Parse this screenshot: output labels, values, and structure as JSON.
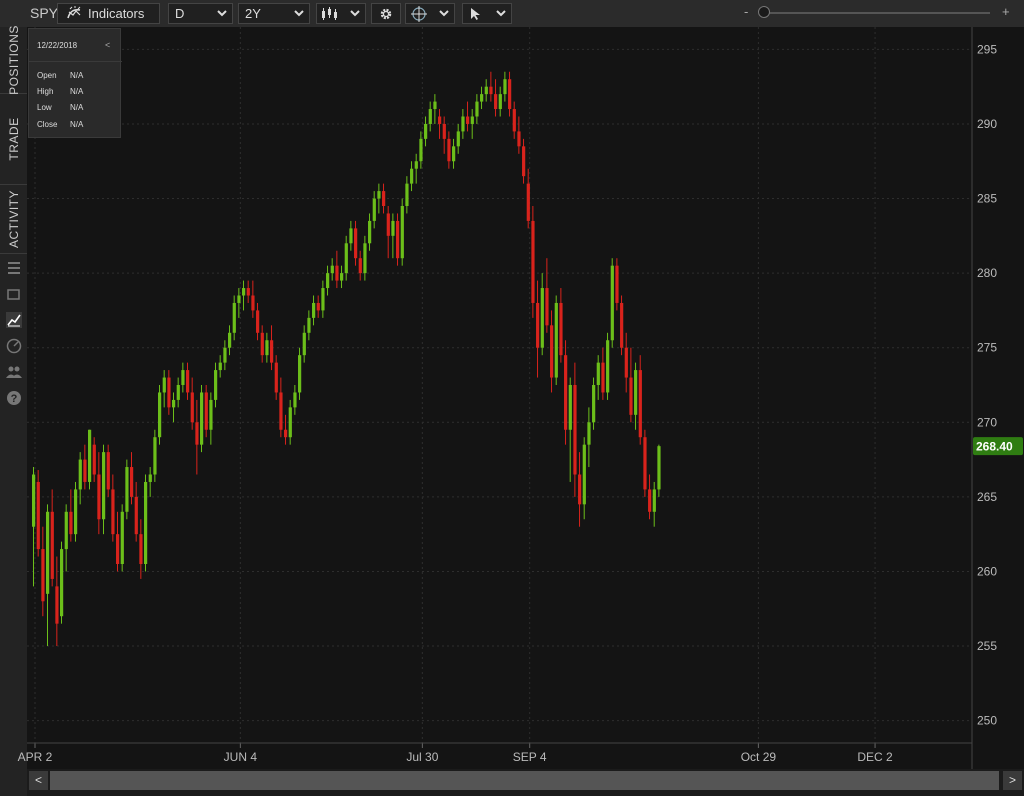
{
  "toolbar": {
    "symbol": "SPY",
    "indicators_label": "Indicators",
    "timeframe": "D",
    "range": "2Y",
    "zoom_minus": "-",
    "zoom_plus": "+"
  },
  "sidebar": {
    "tabs": [
      {
        "label": "POSITIONS"
      },
      {
        "label": "TRADE"
      },
      {
        "label": "ACTIVITY"
      }
    ],
    "icons": [
      "list-icon",
      "window-icon",
      "chart-icon",
      "gauge-icon",
      "people-icon",
      "help-icon"
    ]
  },
  "ohlc_box": {
    "date": "12/22/2018",
    "back_glyph": "<",
    "rows": [
      {
        "label": "Open",
        "value": "N/A"
      },
      {
        "label": "High",
        "value": "N/A"
      },
      {
        "label": "Low",
        "value": "N/A"
      },
      {
        "label": "Close",
        "value": "N/A"
      }
    ]
  },
  "scrollbar": {
    "left_glyph": "<",
    "right_glyph": ">"
  },
  "colors": {
    "up": "#6cbf1a",
    "down": "#d9231c",
    "price_tag": "#2f7d12",
    "background": "#141414"
  },
  "chart_data": {
    "type": "candlestick",
    "x_ticks": [
      "APR 2",
      "JUN 4",
      "Jul 30",
      "SEP 4",
      "Oct 29",
      "DEC 2"
    ],
    "x_tick_index": [
      0,
      44,
      83,
      106,
      155,
      180
    ],
    "y_ticks": [
      250,
      255,
      260,
      265,
      270,
      275,
      280,
      285,
      290,
      295
    ],
    "ylim": [
      248.5,
      296.5
    ],
    "last_price": 268.4,
    "last_price_label": "268.40",
    "grid": true,
    "candles": [
      [
        263.0,
        267.0,
        259.0,
        266.5
      ],
      [
        266.0,
        266.8,
        261.0,
        261.5
      ],
      [
        261.5,
        263.0,
        257.0,
        258.0
      ],
      [
        258.5,
        264.5,
        255.0,
        264.0
      ],
      [
        264.0,
        265.5,
        259.0,
        259.5
      ],
      [
        259.0,
        261.0,
        255.0,
        256.5
      ],
      [
        257.0,
        262.0,
        256.5,
        261.5
      ],
      [
        261.5,
        264.5,
        260.0,
        264.0
      ],
      [
        264.0,
        265.5,
        262.0,
        262.5
      ],
      [
        262.5,
        266.0,
        262.0,
        265.5
      ],
      [
        265.5,
        268.0,
        264.5,
        267.5
      ],
      [
        267.5,
        268.5,
        265.5,
        266.0
      ],
      [
        266.0,
        269.5,
        265.5,
        269.5
      ],
      [
        268.5,
        269.0,
        266.0,
        266.5
      ],
      [
        266.5,
        268.0,
        262.5,
        263.5
      ],
      [
        263.5,
        268.5,
        262.5,
        268.0
      ],
      [
        268.0,
        268.5,
        265.0,
        265.5
      ],
      [
        265.5,
        266.5,
        262.0,
        262.5
      ],
      [
        262.5,
        264.0,
        260.0,
        260.5
      ],
      [
        260.5,
        264.5,
        260.0,
        264.0
      ],
      [
        264.0,
        267.5,
        263.5,
        267.0
      ],
      [
        267.0,
        268.0,
        264.5,
        265.0
      ],
      [
        265.0,
        266.0,
        262.0,
        262.5
      ],
      [
        262.5,
        263.5,
        259.5,
        260.5
      ],
      [
        260.5,
        266.5,
        260.0,
        266.0
      ],
      [
        266.0,
        267.0,
        265.0,
        266.5
      ],
      [
        266.5,
        269.5,
        266.0,
        269.0
      ],
      [
        269.0,
        272.5,
        268.5,
        272.0
      ],
      [
        272.0,
        273.5,
        271.0,
        273.0
      ],
      [
        273.0,
        273.5,
        270.5,
        271.0
      ],
      [
        271.0,
        272.0,
        270.0,
        271.5
      ],
      [
        271.5,
        273.0,
        271.0,
        272.5
      ],
      [
        272.5,
        274.0,
        272.0,
        273.5
      ],
      [
        273.5,
        274.0,
        271.5,
        272.0
      ],
      [
        272.0,
        273.0,
        269.5,
        270.0
      ],
      [
        270.0,
        271.5,
        266.5,
        268.5
      ],
      [
        268.5,
        272.5,
        268.0,
        272.0
      ],
      [
        272.0,
        272.5,
        269.0,
        269.5
      ],
      [
        269.5,
        272.0,
        268.5,
        271.5
      ],
      [
        271.5,
        274.0,
        271.0,
        273.5
      ],
      [
        273.5,
        274.5,
        273.0,
        274.0
      ],
      [
        274.0,
        275.5,
        273.5,
        275.0
      ],
      [
        275.0,
        276.5,
        274.5,
        276.0
      ],
      [
        276.0,
        278.5,
        275.5,
        278.0
      ],
      [
        278.0,
        279.0,
        277.0,
        278.5
      ],
      [
        278.5,
        279.5,
        277.5,
        279.0
      ],
      [
        279.0,
        279.5,
        278.0,
        278.5
      ],
      [
        278.5,
        279.5,
        277.0,
        277.5
      ],
      [
        277.5,
        278.0,
        275.5,
        276.0
      ],
      [
        276.0,
        276.5,
        274.0,
        274.5
      ],
      [
        274.5,
        276.0,
        274.0,
        275.5
      ],
      [
        275.5,
        276.5,
        273.5,
        274.0
      ],
      [
        274.0,
        274.5,
        271.5,
        272.0
      ],
      [
        272.0,
        273.0,
        269.0,
        269.5
      ],
      [
        269.5,
        270.5,
        268.5,
        269.0
      ],
      [
        269.0,
        271.5,
        268.5,
        271.0
      ],
      [
        271.0,
        272.5,
        270.5,
        272.0
      ],
      [
        272.0,
        275.0,
        271.5,
        274.5
      ],
      [
        274.5,
        276.5,
        274.0,
        276.0
      ],
      [
        276.0,
        277.5,
        275.5,
        277.0
      ],
      [
        277.0,
        278.5,
        276.5,
        278.0
      ],
      [
        278.0,
        278.5,
        277.0,
        277.5
      ],
      [
        277.5,
        279.5,
        277.0,
        279.0
      ],
      [
        279.0,
        280.5,
        278.5,
        280.0
      ],
      [
        280.0,
        281.0,
        279.5,
        280.5
      ],
      [
        280.5,
        281.5,
        279.0,
        279.5
      ],
      [
        279.5,
        280.5,
        279.0,
        280.0
      ],
      [
        280.0,
        282.5,
        279.5,
        282.0
      ],
      [
        282.0,
        283.5,
        281.5,
        283.0
      ],
      [
        283.0,
        283.5,
        280.5,
        281.0
      ],
      [
        281.0,
        281.5,
        279.5,
        280.0
      ],
      [
        280.0,
        282.5,
        279.5,
        282.0
      ],
      [
        282.0,
        284.0,
        281.5,
        283.5
      ],
      [
        283.5,
        285.5,
        283.0,
        285.0
      ],
      [
        285.0,
        286.0,
        284.0,
        285.5
      ],
      [
        285.5,
        286.0,
        284.0,
        284.5
      ],
      [
        284.0,
        284.5,
        281.0,
        282.5
      ],
      [
        282.5,
        284.0,
        281.0,
        283.5
      ],
      [
        283.5,
        284.0,
        280.5,
        281.0
      ],
      [
        281.0,
        285.0,
        280.5,
        284.5
      ],
      [
        284.5,
        286.5,
        284.0,
        286.0
      ],
      [
        286.0,
        287.5,
        285.5,
        287.0
      ],
      [
        287.0,
        288.0,
        286.0,
        287.5
      ],
      [
        287.5,
        289.5,
        287.0,
        289.0
      ],
      [
        289.0,
        290.5,
        288.5,
        290.0
      ],
      [
        290.0,
        291.5,
        289.5,
        291.0
      ],
      [
        291.0,
        292.0,
        290.0,
        291.5
      ],
      [
        290.5,
        291.0,
        289.0,
        290.0
      ],
      [
        290.0,
        290.5,
        288.0,
        289.0
      ],
      [
        289.0,
        289.5,
        287.0,
        287.5
      ],
      [
        287.5,
        289.0,
        287.0,
        288.5
      ],
      [
        288.5,
        290.0,
        288.0,
        289.5
      ],
      [
        289.5,
        291.0,
        289.0,
        290.5
      ],
      [
        290.5,
        291.5,
        289.5,
        290.0
      ],
      [
        290.0,
        291.0,
        289.0,
        290.5
      ],
      [
        290.5,
        292.0,
        290.0,
        291.5
      ],
      [
        291.5,
        292.5,
        291.0,
        292.0
      ],
      [
        292.0,
        293.0,
        291.5,
        292.5
      ],
      [
        292.5,
        293.5,
        291.5,
        292.0
      ],
      [
        292.0,
        293.0,
        290.5,
        291.0
      ],
      [
        291.0,
        292.5,
        290.5,
        292.0
      ],
      [
        292.0,
        293.5,
        291.5,
        293.0
      ],
      [
        293.0,
        293.5,
        290.5,
        291.0
      ],
      [
        291.0,
        291.5,
        289.0,
        289.5
      ],
      [
        289.5,
        290.5,
        288.0,
        288.5
      ],
      [
        288.5,
        289.0,
        286.0,
        286.5
      ],
      [
        286.0,
        287.0,
        283.0,
        283.5
      ],
      [
        283.5,
        284.5,
        277.0,
        278.0
      ],
      [
        278.0,
        279.5,
        273.0,
        275.0
      ],
      [
        275.0,
        280.0,
        274.5,
        279.0
      ],
      [
        279.0,
        281.0,
        276.0,
        276.5
      ],
      [
        276.5,
        277.5,
        272.0,
        273.0
      ],
      [
        273.0,
        278.5,
        272.5,
        278.0
      ],
      [
        278.0,
        279.0,
        274.0,
        274.5
      ],
      [
        274.5,
        275.5,
        268.5,
        269.5
      ],
      [
        269.5,
        273.0,
        266.0,
        272.5
      ],
      [
        272.5,
        274.0,
        265.0,
        266.5
      ],
      [
        266.5,
        268.0,
        263.0,
        264.5
      ],
      [
        264.5,
        269.0,
        263.5,
        268.5
      ],
      [
        268.5,
        271.0,
        267.0,
        270.0
      ],
      [
        270.0,
        273.0,
        269.5,
        272.5
      ],
      [
        272.5,
        274.5,
        271.5,
        274.0
      ],
      [
        274.0,
        275.0,
        271.5,
        272.0
      ],
      [
        272.0,
        276.0,
        271.5,
        275.5
      ],
      [
        275.5,
        281.0,
        275.0,
        280.5
      ],
      [
        280.5,
        281.0,
        277.5,
        278.0
      ],
      [
        278.0,
        278.5,
        274.5,
        275.0
      ],
      [
        275.0,
        276.0,
        272.0,
        273.0
      ],
      [
        273.0,
        275.0,
        270.0,
        270.5
      ],
      [
        270.5,
        274.0,
        269.5,
        273.5
      ],
      [
        273.5,
        274.5,
        268.5,
        269.0
      ],
      [
        269.0,
        269.5,
        265.0,
        265.5
      ],
      [
        265.5,
        266.5,
        263.5,
        264.0
      ],
      [
        264.0,
        266.0,
        263.0,
        265.5
      ],
      [
        265.5,
        268.5,
        265.0,
        268.4
      ]
    ]
  }
}
